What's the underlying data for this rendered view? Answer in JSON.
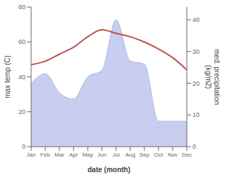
{
  "chart_data": {
    "type": "line",
    "categories": [
      "Jan",
      "Feb",
      "Mar",
      "Apr",
      "May",
      "Jun",
      "Jul",
      "Aug",
      "Sep",
      "Oct",
      "Nov",
      "Dec"
    ],
    "xlabel": "date (month)",
    "ylabel": "max temp (C)",
    "y2label": "med. precipitation\n(kg/m2)",
    "ylim": [
      0,
      80
    ],
    "yticks": [
      0,
      20,
      40,
      60,
      80
    ],
    "y2lim": [
      0,
      44
    ],
    "y2ticks": [
      0,
      10,
      20,
      30,
      40
    ],
    "grid": false,
    "series": [
      {
        "type": "area",
        "axis": "y2",
        "color": "#aab4e8",
        "values": [
          20,
          23,
          17,
          15,
          22,
          24,
          40,
          27,
          26,
          8,
          8,
          8
        ]
      },
      {
        "type": "line",
        "axis": "y",
        "color": "#c0504d",
        "values": [
          47,
          49,
          53,
          57,
          63,
          67,
          65,
          63,
          60,
          56,
          51,
          44
        ]
      }
    ]
  }
}
